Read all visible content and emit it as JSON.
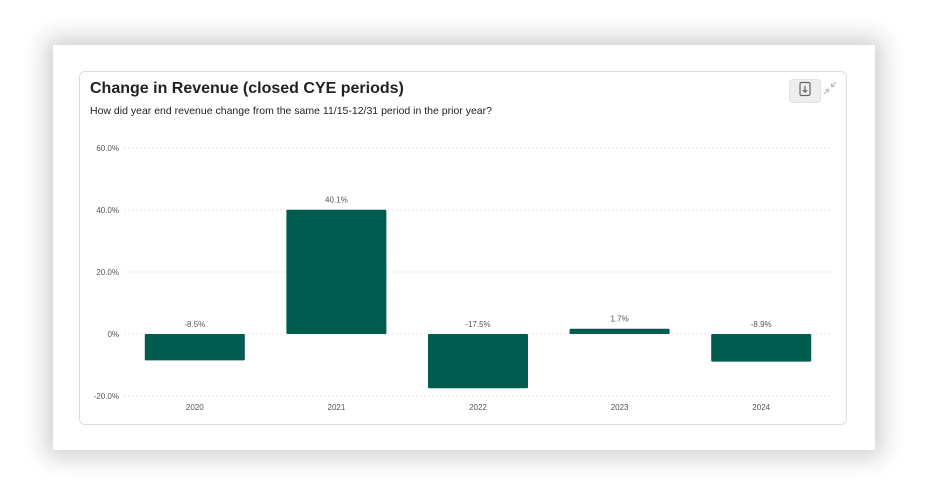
{
  "card": {
    "title": "Change in Revenue (closed CYE periods)",
    "subtitle": "How did year end revenue change from the same 11/15-12/31 period in the prior year?",
    "download_icon": "download-file-icon",
    "collapse_icon": "collapse-arrows-icon"
  },
  "colors": {
    "bar": "#005c4e",
    "grid": "#e3e3e3",
    "tick_text": "#555555",
    "label_text": "#555555"
  },
  "chart_data": {
    "type": "bar",
    "title": "Change in Revenue (closed CYE periods)",
    "subtitle": "How did year end revenue change from the same 11/15-12/31 period in the prior year?",
    "categories": [
      "2020",
      "2021",
      "2022",
      "2023",
      "2024"
    ],
    "values": [
      -8.5,
      40.1,
      -17.5,
      1.7,
      -8.9
    ],
    "data_labels": [
      "-8.5%",
      "40.1%",
      "-17.5%",
      "1.7%",
      "-8.9%"
    ],
    "yticks": [
      60,
      40,
      20,
      0,
      -20
    ],
    "ytick_labels": [
      "60.0%",
      "40.0%",
      "20.0%",
      "0%",
      "-20.0%"
    ],
    "ylim": [
      -20,
      60
    ],
    "xlabel": "",
    "ylabel": "",
    "grid": true,
    "legend": false
  }
}
